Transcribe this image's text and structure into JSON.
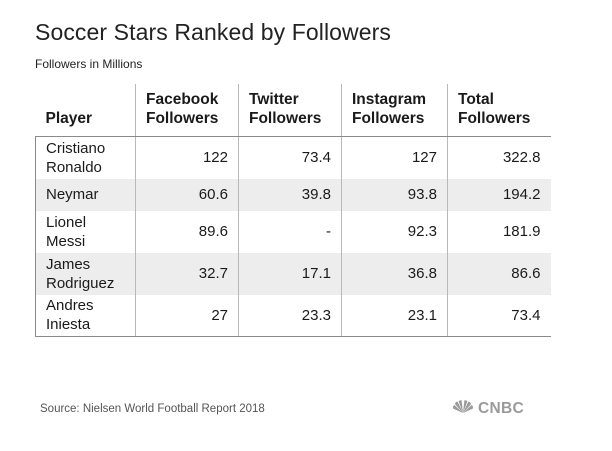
{
  "title": "Soccer Stars Ranked by Followers",
  "subtitle": "Followers in Millions",
  "source": "Source: Nielsen World Football Report 2018",
  "logo_text": "CNBC",
  "colors": {
    "row_stripe": "#ededed",
    "border": "#8a8a8a",
    "logo_gray": "#9a9a9a"
  },
  "chart_data": {
    "type": "table",
    "title": "Soccer Stars Ranked by Followers",
    "subtitle": "Followers in Millions",
    "columns": [
      [
        "Player"
      ],
      [
        "Facebook",
        "Followers"
      ],
      [
        "Twitter",
        "Followers"
      ],
      [
        "Instagram",
        "Followers"
      ],
      [
        "Total",
        "Followers"
      ]
    ],
    "rows": [
      {
        "player": [
          "Cristiano",
          "Ronaldo"
        ],
        "facebook": "122",
        "twitter": "73.4",
        "instagram": "127",
        "total": "322.8"
      },
      {
        "player": [
          "Neymar"
        ],
        "facebook": "60.6",
        "twitter": "39.8",
        "instagram": "93.8",
        "total": "194.2"
      },
      {
        "player": [
          "Lionel",
          "Messi"
        ],
        "facebook": "89.6",
        "twitter": "-",
        "instagram": "92.3",
        "total": "181.9"
      },
      {
        "player": [
          "James",
          "Rodriguez"
        ],
        "facebook": "32.7",
        "twitter": "17.1",
        "instagram": "36.8",
        "total": "86.6"
      },
      {
        "player": [
          "Andres",
          "Iniesta"
        ],
        "facebook": "27",
        "twitter": "23.3",
        "instagram": "23.1",
        "total": "73.4"
      }
    ]
  }
}
